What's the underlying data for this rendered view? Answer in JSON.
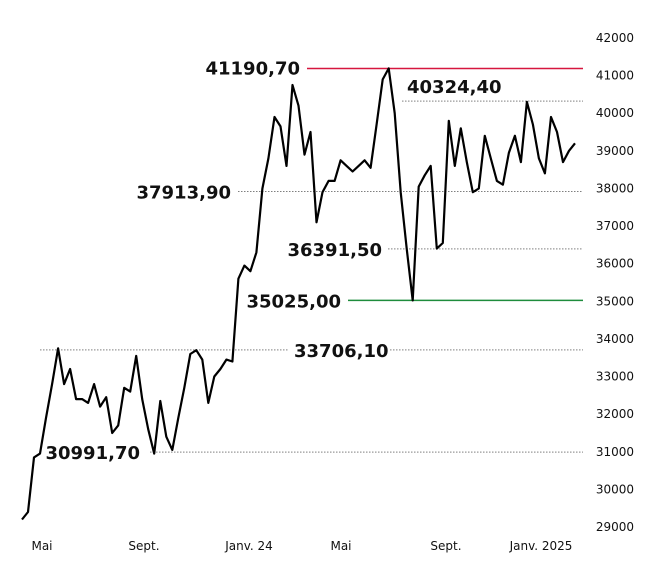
{
  "chart_data": {
    "type": "line",
    "title": "",
    "xlabel": "",
    "ylabel": "",
    "x_tick_labels": [
      "Mai",
      "Sept.",
      "Janv. 24",
      "Mai",
      "Sept.",
      "Janv. 2025"
    ],
    "y_tick_labels": [
      "29000",
      "30000",
      "31000",
      "32000",
      "33000",
      "34000",
      "35000",
      "36000",
      "37000",
      "38000",
      "39000",
      "40000",
      "41000",
      "42000"
    ],
    "ylim": [
      29000,
      42000
    ],
    "grid": false,
    "series": [
      {
        "name": "",
        "color": "#000000",
        "values": [
          29200,
          29400,
          30850,
          30950,
          31900,
          32800,
          33750,
          32800,
          33200,
          32400,
          32400,
          32300,
          32800,
          32200,
          32450,
          31500,
          31700,
          32700,
          32600,
          33550,
          32400,
          31600,
          30950,
          32350,
          31400,
          31050,
          31900,
          32700,
          33600,
          33700,
          33450,
          32300,
          33000,
          33200,
          33450,
          33400,
          35600,
          35950,
          35800,
          36300,
          38000,
          38800,
          39900,
          39650,
          38600,
          40750,
          40200,
          38900,
          39500,
          37100,
          37900,
          38200,
          38200,
          38750,
          38600,
          38450,
          38600,
          38750,
          38550,
          39700,
          40900,
          41190.7,
          40000,
          37900,
          36400,
          35025,
          38050,
          38350,
          38600,
          36400,
          36550,
          39800,
          38600,
          39600,
          38700,
          37900,
          38000,
          39400,
          38800,
          38200,
          38100,
          38950,
          39400,
          38700,
          40300,
          39700,
          38800,
          38400,
          39900,
          39500,
          38700,
          39000,
          39200
        ]
      }
    ],
    "annotations": [
      {
        "label": "41190,70",
        "value": 41190.7,
        "color": "#d6163f",
        "kind": "max"
      },
      {
        "label": "40324,40",
        "value": 40324.4,
        "color": "#111111",
        "kind": "level"
      },
      {
        "label": "37913,90",
        "value": 37913.9,
        "color": "#111111",
        "kind": "level"
      },
      {
        "label": "36391,50",
        "value": 36391.5,
        "color": "#111111",
        "kind": "level"
      },
      {
        "label": "35025,00",
        "value": 35025.0,
        "color": "#1e8c3c",
        "kind": "min"
      },
      {
        "label": "33706,10",
        "value": 33706.1,
        "color": "#111111",
        "kind": "level"
      },
      {
        "label": "30991,70",
        "value": 30991.7,
        "color": "#111111",
        "kind": "level"
      }
    ]
  }
}
